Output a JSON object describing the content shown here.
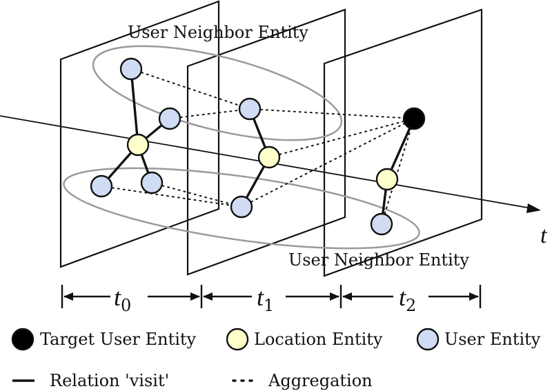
{
  "title": "",
  "labels": {
    "user_neighbor_entity_top": "User Neighbor Entity",
    "user_neighbor_entity_bottom": "User Neighbor Entity",
    "time_axis": "t",
    "t0_base": "t",
    "t0_sub": "0",
    "t1_base": "t",
    "t1_sub": "1",
    "t2_base": "t",
    "t2_sub": "2"
  },
  "legend": {
    "target_user_entity": "Target User Entity",
    "location_entity": "Location Entity",
    "user_entity": "User Entity",
    "relation_visit": "Relation 'visit'",
    "aggregation": "Aggregation"
  },
  "colors": {
    "target_user": "#000000",
    "location": "#ffffcc",
    "user": "#cfdcf3",
    "ring": "#9a9a9a",
    "line": "#111111"
  }
}
